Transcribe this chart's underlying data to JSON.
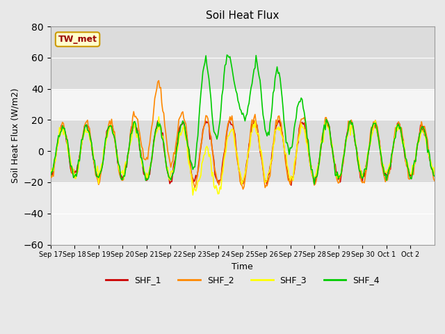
{
  "title": "Soil Heat Flux",
  "xlabel": "Time",
  "ylabel": "Soil Heat Flux (W/m2)",
  "ylim": [
    -60,
    80
  ],
  "yticks": [
    -60,
    -40,
    -20,
    0,
    20,
    40,
    60,
    80
  ],
  "annotation_text": "TW_met",
  "annotation_bg": "#FFFFCC",
  "annotation_border": "#CC9900",
  "annotation_text_color": "#990000",
  "colors": {
    "SHF_1": "#CC0000",
    "SHF_2": "#FF8800",
    "SHF_3": "#FFFF00",
    "SHF_4": "#00CC00"
  },
  "legend_labels": [
    "SHF_1",
    "SHF_2",
    "SHF_3",
    "SHF_4"
  ],
  "bg_color": "#E8E8E8",
  "plot_bg": "#F5F5F5",
  "n_days": 16,
  "xtick_positions": [
    0,
    1,
    2,
    3,
    4,
    5,
    6,
    7,
    8,
    9,
    10,
    11,
    12,
    13,
    14,
    15
  ],
  "xtick_labels": [
    "Sep 17",
    "Sep 18",
    "Sep 19",
    "Sep 20",
    "Sep 21",
    "Sep 22",
    "Sep 23",
    "Sep 24",
    "Sep 25",
    "Sep 26",
    "Sep 27",
    "Sep 28",
    "Sep 29",
    "Sep 30",
    "Oct 1",
    "Oct 2"
  ],
  "shaded_bands": [
    {
      "ymin": -20,
      "ymax": 20,
      "color": "#DCDCDC"
    },
    {
      "ymin": 40,
      "ymax": 80,
      "color": "#DCDCDC"
    }
  ]
}
